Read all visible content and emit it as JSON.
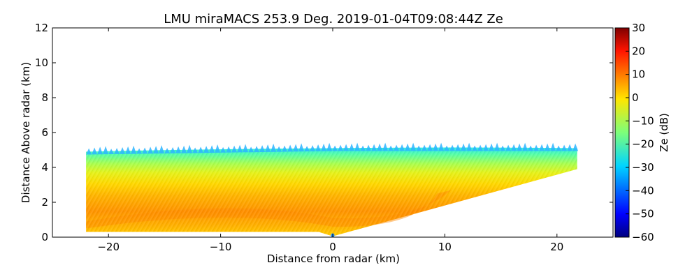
{
  "chart_data": {
    "type": "heatmap",
    "title": "LMU miraMACS 253.9 Deg. 2019-01-04T09:08:44Z  Ze",
    "xlabel": "Distance from radar (km)",
    "ylabel": "Distance Above radar  (km)",
    "xlim": [
      -25,
      25
    ],
    "ylim": [
      0,
      12
    ],
    "xticks": [
      -20,
      -10,
      0,
      10,
      20
    ],
    "xtick_labels": [
      "−20",
      "−10",
      "0",
      "10",
      "20"
    ],
    "yticks": [
      0,
      2,
      4,
      6,
      8,
      10,
      12
    ],
    "ytick_labels": [
      "0",
      "2",
      "4",
      "6",
      "8",
      "10",
      "12"
    ],
    "grid": false,
    "colorbar": {
      "label": "Ze (dB)",
      "colormap": "jet",
      "range": [
        -60,
        30
      ],
      "ticks": [
        30,
        20,
        10,
        0,
        -10,
        -20,
        -30,
        -40,
        -50,
        -60
      ],
      "tick_labels": [
        "30",
        "20",
        "10",
        "0",
        "−10",
        "−20",
        "−30",
        "−40",
        "−50",
        "−60"
      ]
    },
    "field": {
      "description_units": "km",
      "left_edge_x": -22,
      "right_edge_x": 21.8,
      "left_bottom_y": 0.3,
      "right_bottom_y": 3.9,
      "top_y_left": 4.9,
      "top_y_center": 5.1,
      "top_y_right": 5.1,
      "layers": [
        {
          "y_from": 0.0,
          "y_to": 1.0,
          "ze": 8
        },
        {
          "y_from": 1.0,
          "y_to": 2.0,
          "ze": 13
        },
        {
          "y_from": 2.0,
          "y_to": 3.0,
          "ze": 9
        },
        {
          "y_from": 3.0,
          "y_to": 3.8,
          "ze": 0
        },
        {
          "y_from": 3.8,
          "y_to": 4.5,
          "ze": -12
        },
        {
          "y_from": 4.5,
          "y_to": 5.2,
          "ze": -25
        }
      ]
    }
  }
}
